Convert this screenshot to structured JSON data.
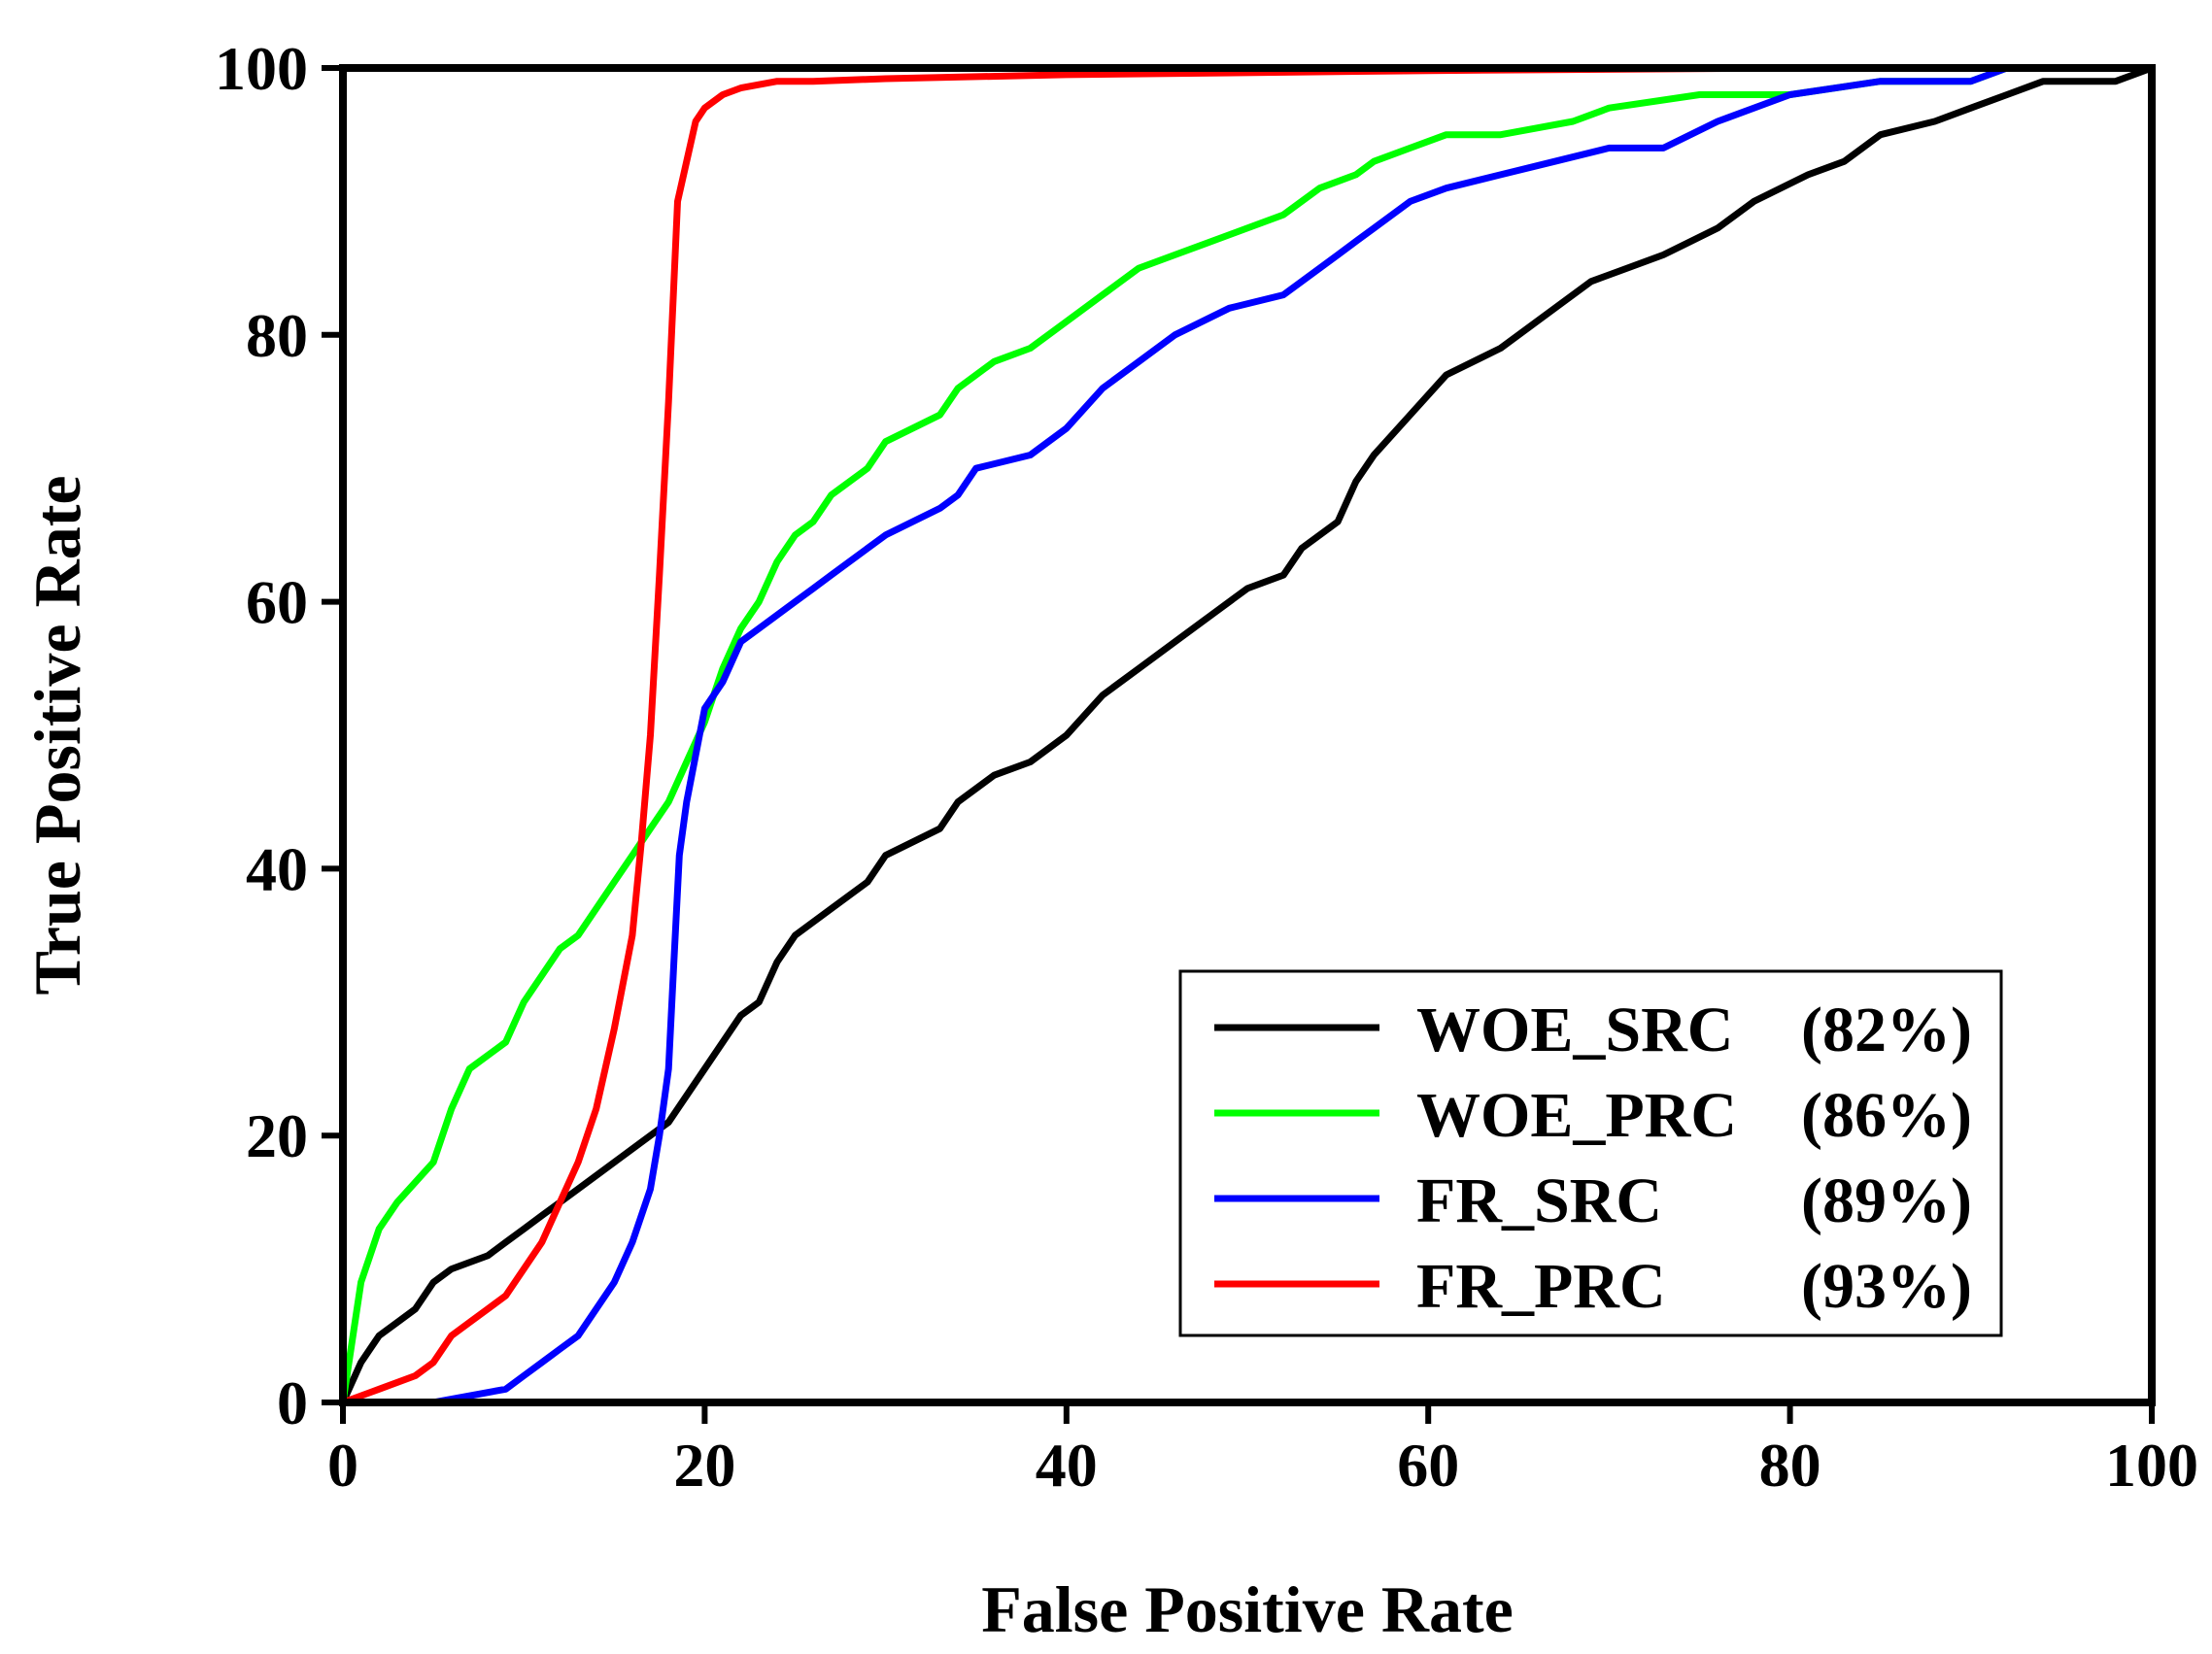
{
  "chart_data": {
    "type": "line",
    "xlabel": "False Positive Rate",
    "ylabel": "True Positive Rate",
    "xlim": [
      0,
      100
    ],
    "ylim": [
      0,
      100
    ],
    "xticks": [
      0,
      20,
      40,
      60,
      80,
      100
    ],
    "yticks": [
      0,
      20,
      40,
      60,
      80,
      100
    ],
    "grid": false,
    "legend_position": "bottom-right",
    "series": [
      {
        "name": "WOE_SRC",
        "auc_label": "(82%)",
        "color": "#000000",
        "x": [
          0,
          1,
          2,
          3,
          4,
          5,
          6,
          8,
          9,
          10,
          11,
          12,
          13,
          14,
          15,
          16,
          17,
          18,
          19,
          20,
          21,
          22,
          23,
          24,
          25,
          27,
          29,
          30,
          33,
          34,
          36,
          38,
          40,
          42,
          44,
          46,
          48,
          50,
          52,
          53,
          55,
          56,
          57,
          59,
          61,
          64,
          67,
          69,
          71,
          73,
          76,
          78,
          81,
          83,
          85,
          88,
          90,
          92,
          94,
          96,
          98,
          100
        ],
        "y": [
          0,
          3,
          5,
          6,
          7,
          9,
          10,
          11,
          12,
          13,
          14,
          15,
          16,
          17,
          18,
          19,
          20,
          21,
          23,
          25,
          27,
          29,
          30,
          33,
          35,
          37,
          39,
          41,
          43,
          45,
          47,
          48,
          50,
          53,
          55,
          57,
          59,
          61,
          62,
          64,
          66,
          69,
          71,
          74,
          77,
          79,
          82,
          84,
          85,
          86,
          88,
          90,
          92,
          93,
          95,
          96,
          97,
          98,
          99,
          99,
          99,
          100
        ]
      },
      {
        "name": "WOE_PRC",
        "auc_label": "(86%)",
        "color": "#00ff00",
        "x": [
          0,
          1,
          2,
          3,
          5,
          6,
          7,
          9,
          10,
          11,
          12,
          13,
          14,
          15,
          16,
          17,
          18,
          19,
          20,
          21,
          22,
          23,
          24,
          25,
          26,
          27,
          29,
          30,
          33,
          34,
          36,
          38,
          40,
          42,
          44,
          46,
          50,
          52,
          54,
          56,
          57,
          59,
          61,
          64,
          68,
          70,
          75,
          80,
          85,
          90,
          92,
          95,
          100
        ],
        "y": [
          0,
          9,
          13,
          15,
          18,
          22,
          25,
          27,
          30,
          32,
          34,
          35,
          37,
          39,
          41,
          43,
          45,
          48,
          51,
          55,
          58,
          60,
          63,
          65,
          66,
          68,
          70,
          72,
          74,
          76,
          78,
          79,
          81,
          83,
          85,
          86,
          88,
          89,
          91,
          92,
          93,
          94,
          95,
          95,
          96,
          97,
          98,
          98,
          99,
          99,
          100,
          100,
          100
        ]
      },
      {
        "name": "FR_SRC",
        "auc_label": "(89%)",
        "color": "#0000ff",
        "x": [
          0,
          5,
          9,
          10,
          11,
          12,
          13,
          14,
          15,
          16,
          17,
          17.5,
          18,
          18.3,
          18.6,
          19,
          20,
          21,
          22,
          23,
          24,
          25,
          26,
          27,
          29,
          30,
          33,
          34,
          35,
          38,
          40,
          42,
          44,
          46,
          49,
          52,
          53,
          55,
          56,
          57,
          59,
          61,
          64,
          67,
          70,
          73,
          76,
          80,
          85,
          90,
          92,
          95,
          100
        ],
        "y": [
          0,
          0,
          1,
          2,
          3,
          4,
          5,
          7,
          9,
          12,
          16,
          20,
          25,
          33,
          41,
          45,
          52,
          54,
          57,
          58,
          59,
          60,
          61,
          62,
          64,
          65,
          67,
          68,
          70,
          71,
          73,
          76,
          78,
          80,
          82,
          83,
          84,
          86,
          87,
          88,
          90,
          91,
          92,
          93,
          94,
          94,
          96,
          98,
          99,
          99,
          100,
          100,
          100
        ]
      },
      {
        "name": "FR_PRC",
        "auc_label": "(93%)",
        "color": "#ff0000",
        "x": [
          0,
          2,
          4,
          5,
          6,
          7,
          8,
          9,
          10,
          11,
          12,
          13,
          14,
          15,
          16,
          16.5,
          17,
          17.5,
          18,
          18.5,
          19,
          19.5,
          20,
          21,
          22,
          24,
          26,
          30,
          40,
          60,
          80,
          100
        ],
        "y": [
          0,
          1,
          2,
          3,
          5,
          6,
          7,
          8,
          10,
          12,
          15,
          18,
          22,
          28,
          35,
          42,
          50,
          62,
          75,
          90,
          93,
          96,
          97,
          98,
          98.5,
          99,
          99,
          99.2,
          99.5,
          99.8,
          100,
          100
        ]
      }
    ]
  }
}
